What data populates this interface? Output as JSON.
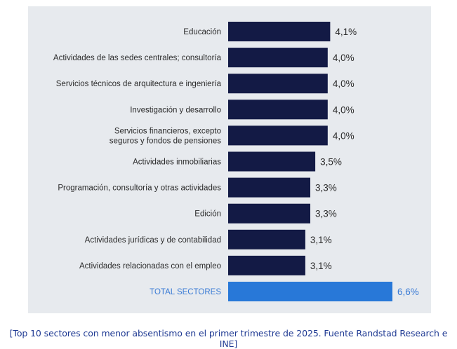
{
  "chart_data": {
    "type": "bar",
    "orientation": "horizontal",
    "categories": [
      [
        "Educación"
      ],
      [
        "Actividades de las sedes centrales; consultoría"
      ],
      [
        "Servicios técnicos de arquitectura e ingeniería"
      ],
      [
        "Investigación y desarrollo"
      ],
      [
        "Servicios financieros, excepto",
        "seguros y fondos de pensiones"
      ],
      [
        "Actividades inmobiliarias"
      ],
      [
        "Programación, consultoría y otras actividades"
      ],
      [
        "Edición"
      ],
      [
        "Actividades jurídicas y de contabilidad"
      ],
      [
        "Actividades relacionadas con el empleo"
      ],
      [
        "TOTAL SECTORES"
      ]
    ],
    "values": [
      4.1,
      4.0,
      4.0,
      4.0,
      4.0,
      3.5,
      3.3,
      3.3,
      3.1,
      3.1,
      6.6
    ],
    "value_labels": [
      "4,1%",
      "4,0%",
      "4,0%",
      "4,0%",
      "4,0%",
      "3,5%",
      "3,3%",
      "3,3%",
      "3,1%",
      "3,1%",
      "6,6%"
    ],
    "highlight_index": 10,
    "xlim": [
      0,
      6.6
    ],
    "title": "",
    "xlabel": "",
    "ylabel": ""
  },
  "colors": {
    "panel_bg": "#e7eaee",
    "bar": "#131a45",
    "bar_total": "#2878d8",
    "label": "#2b2b2b",
    "label_total": "#3a7bd5",
    "caption": "#1f3a93"
  },
  "caption": "[Top 10 sectores con menor absentismo en el primer trimestre de 2025. Fuente Randstad Research e INE]"
}
